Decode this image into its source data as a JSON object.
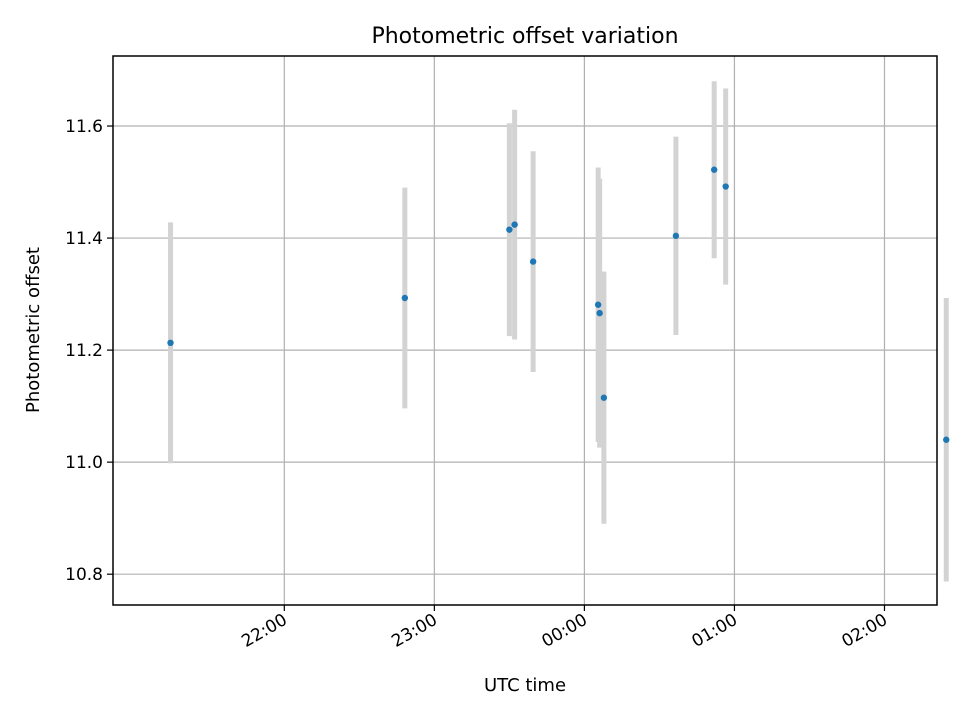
{
  "chart_data": {
    "type": "scatter",
    "title": "Photometric offset variation",
    "xlabel": "UTC time",
    "ylabel": "Photometric offset",
    "x_unit": "minutes since 21:00 UTC",
    "xlim": [
      -8.5,
      321
    ],
    "ylim": [
      10.745,
      11.725
    ],
    "grid": true,
    "x_ticks": [
      {
        "value": 60,
        "label": "22:00"
      },
      {
        "value": 120,
        "label": "23:00"
      },
      {
        "value": 180,
        "label": "00:00"
      },
      {
        "value": 240,
        "label": "01:00"
      },
      {
        "value": 300,
        "label": "02:00"
      }
    ],
    "y_ticks": [
      {
        "value": 10.8,
        "label": "10.8"
      },
      {
        "value": 11.0,
        "label": "11.0"
      },
      {
        "value": 11.2,
        "label": "11.2"
      },
      {
        "value": 11.4,
        "label": "11.4"
      },
      {
        "value": 11.6,
        "label": "11.6"
      }
    ],
    "marker_color": "#1f77b4",
    "errorbar_color": "#d3d3d3",
    "points": [
      {
        "x": 14.5,
        "y": 11.213,
        "err": 0.215
      },
      {
        "x": 108.2,
        "y": 11.293,
        "err": 0.197
      },
      {
        "x": 150.0,
        "y": 11.415,
        "err": 0.19
      },
      {
        "x": 152.1,
        "y": 11.424,
        "err": 0.205
      },
      {
        "x": 159.5,
        "y": 11.358,
        "err": 0.197
      },
      {
        "x": 185.5,
        "y": 11.281,
        "err": 0.245
      },
      {
        "x": 186.1,
        "y": 11.266,
        "err": 0.24
      },
      {
        "x": 187.8,
        "y": 11.115,
        "err": 0.225
      },
      {
        "x": 216.6,
        "y": 11.404,
        "err": 0.177
      },
      {
        "x": 231.9,
        "y": 11.522,
        "err": 0.158
      },
      {
        "x": 236.5,
        "y": 11.492,
        "err": 0.175
      },
      {
        "x": 324.7,
        "y": 11.04,
        "err": 0.253
      }
    ]
  }
}
